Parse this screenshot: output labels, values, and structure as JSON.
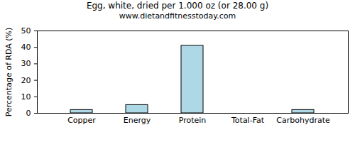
{
  "chart_data": {
    "type": "bar",
    "title": "Egg, white, dried per 1.000 oz (or 28.00 g)",
    "subtitle": "www.dietandfitnesstoday.com",
    "y_label": "Percentage of RDA (%)",
    "categories": [
      "Copper",
      "Energy",
      "Protein",
      "Total-Fat",
      "Carbohydrate"
    ],
    "values": [
      2,
      5,
      41,
      0,
      2
    ],
    "color": "#add8e6",
    "ylim": [
      0,
      50
    ],
    "yticks": [
      0,
      10,
      20,
      30,
      40,
      50
    ],
    "grid": false
  }
}
